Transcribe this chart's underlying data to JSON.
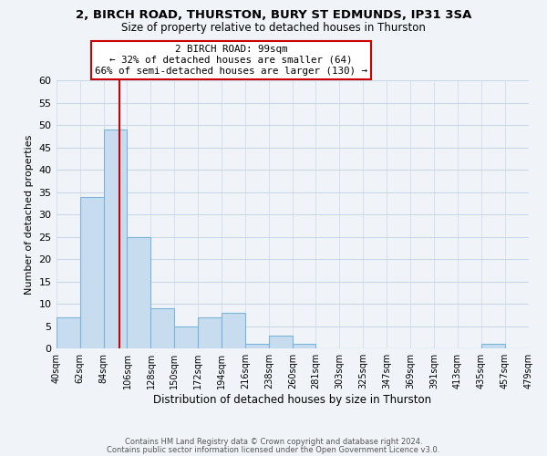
{
  "title": "2, BIRCH ROAD, THURSTON, BURY ST EDMUNDS, IP31 3SA",
  "subtitle": "Size of property relative to detached houses in Thurston",
  "xlabel": "Distribution of detached houses by size in Thurston",
  "ylabel": "Number of detached properties",
  "bar_color": "#c8dcf0",
  "bar_edge_color": "#7ab4d8",
  "grid_color": "#c8d8e8",
  "bin_edges": [
    40,
    62,
    84,
    106,
    128,
    150,
    172,
    194,
    216,
    238,
    260,
    281,
    303,
    325,
    347,
    369,
    391,
    413,
    435,
    457,
    479
  ],
  "bin_labels": [
    "40sqm",
    "62sqm",
    "84sqm",
    "106sqm",
    "128sqm",
    "150sqm",
    "172sqm",
    "194sqm",
    "216sqm",
    "238sqm",
    "260sqm",
    "281sqm",
    "303sqm",
    "325sqm",
    "347sqm",
    "369sqm",
    "391sqm",
    "413sqm",
    "435sqm",
    "457sqm",
    "479sqm"
  ],
  "bar_heights": [
    7,
    34,
    49,
    25,
    9,
    5,
    7,
    8,
    1,
    3,
    1,
    0,
    0,
    0,
    0,
    0,
    0,
    0,
    1,
    0
  ],
  "ylim": [
    0,
    60
  ],
  "yticks": [
    0,
    5,
    10,
    15,
    20,
    25,
    30,
    35,
    40,
    45,
    50,
    55,
    60
  ],
  "property_line_x": 99,
  "property_line_color": "#cc0000",
  "annotation_title": "2 BIRCH ROAD: 99sqm",
  "annotation_line1": "← 32% of detached houses are smaller (64)",
  "annotation_line2": "66% of semi-detached houses are larger (130) →",
  "annotation_box_color": "#ffffff",
  "annotation_box_edge": "#cc0000",
  "footer1": "Contains HM Land Registry data © Crown copyright and database right 2024.",
  "footer2": "Contains public sector information licensed under the Open Government Licence v3.0.",
  "background_color": "#f0f4f8"
}
